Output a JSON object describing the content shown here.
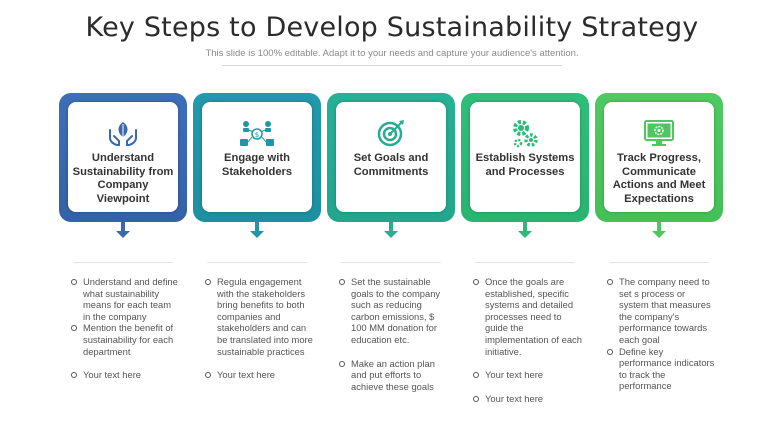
{
  "header": {
    "title": "Key Steps to Develop Sustainability Strategy",
    "subtitle": "This slide is 100% editable. Adapt it to your needs and capture your audience's attention."
  },
  "steps": [
    {
      "title": "Understand Sustainability from Company Viewpoint",
      "icon": "hands-leaf-icon",
      "color": "#3a69ae",
      "bullets": [
        "Understand and define what sustainability means for each team in the company",
        "Mention the benefit of sustainability for each department",
        "Your text here"
      ]
    },
    {
      "title": "Engage with Stakeholders",
      "icon": "stakeholders-network-icon",
      "color": "#1f97a8",
      "bullets": [
        "Regula engagement with the stakeholders bring benefits to both companies and stakeholders and can be translated into more sustainable practices",
        "Your text here"
      ]
    },
    {
      "title": "Set Goals and Commitments",
      "icon": "target-icon",
      "color": "#26ad93",
      "bullets": [
        "Set the sustainable goals to the company such as reducing carbon emissions, $ 100 MM donation for education etc.",
        "Make an action plan and put efforts to achieve these goals"
      ]
    },
    {
      "title": "Establish Systems and Processes",
      "icon": "gears-icon",
      "color": "#2cbb77",
      "bullets": [
        "Once the goals are established, specific systems and detailed processes need to guide the implementation of each initiative.",
        "Your text here",
        "Your text here"
      ]
    },
    {
      "title": "Track Progress, Communicate Actions and Meet Expectations",
      "icon": "monitor-progress-icon",
      "color": "#4bc85f",
      "bullets": [
        "The company need to set s process or system that measures the company's performance towards each goal",
        "Define key performance indicators to track the performance"
      ]
    }
  ]
}
